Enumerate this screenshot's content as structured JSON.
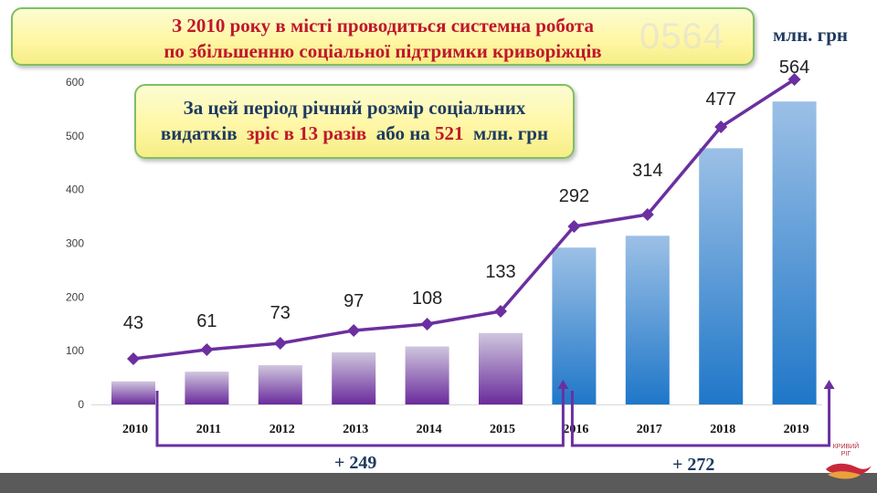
{
  "title": {
    "line1": "З 2010 року в місті проводиться системна робота",
    "line2": "по збільшенню соціальної підтримки криворіжців"
  },
  "watermark": "0564",
  "units": "млн. грн",
  "info": {
    "line1": "За цей період річний розмір соціальних",
    "line2_prefix": "видатків",
    "line2_red": "зріс в 13 разів",
    "line2_mid": "або на",
    "line2_red2": "521",
    "line2_suffix": "млн. грн"
  },
  "increments": [
    {
      "label": "+ 249",
      "from": "2010",
      "to": "2016"
    },
    {
      "label": "+ 272",
      "from": "2016",
      "to": "2019"
    }
  ],
  "logo": {
    "line1": "КРИВИЙ",
    "line2": "РІГ"
  },
  "chart_data": {
    "type": "bar",
    "categories": [
      "2010",
      "2011",
      "2012",
      "2013",
      "2014",
      "2015",
      "2016",
      "2017",
      "2018",
      "2019"
    ],
    "values": [
      43,
      61,
      73,
      97,
      108,
      133,
      292,
      314,
      477,
      564
    ],
    "data_labels": [
      "43",
      "61",
      "73",
      "97",
      "108",
      "133",
      "292",
      "314",
      "477",
      "564"
    ],
    "ylim": [
      0,
      600
    ],
    "yticks": [
      0,
      100,
      200,
      300,
      400,
      500,
      600
    ],
    "ytick_labels": [
      "0",
      "100",
      "200",
      "300",
      "400",
      "500",
      "600"
    ],
    "line_overlay": true,
    "grid": false,
    "colors": {
      "bar_early_top": "#cfc6dd",
      "bar_early_bottom": "#6a2b9c",
      "bar_late_top": "#9cc0e6",
      "bar_late_bottom": "#1f77c8",
      "line": "#6b2fa0"
    }
  }
}
